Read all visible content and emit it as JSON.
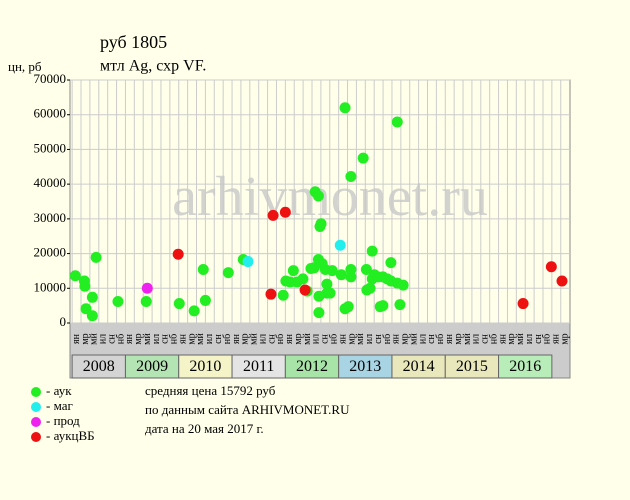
{
  "chart_data": {
    "type": "scatter",
    "title": "руб 1805",
    "subtitle": "мтл Ag, схр VF.",
    "y_label": "цн, рб",
    "watermark": "arhivmonet.ru",
    "xlim": [
      2007.96,
      2017.34
    ],
    "ylim": [
      0,
      70000
    ],
    "yticks": [
      0,
      10000,
      20000,
      30000,
      40000,
      50000,
      60000,
      70000
    ],
    "grid": true,
    "years": [
      2008,
      2009,
      2010,
      2011,
      2012,
      2013,
      2014,
      2015,
      2016
    ],
    "year_colors": [
      "#d4d4d4",
      "#b4e4b4",
      "#f4f4c8",
      "#e4e4e4",
      "#a8e4a8",
      "#a8d4e4",
      "#e8e8bc",
      "#e8e8bc",
      "#b8ecb8"
    ],
    "period_labels": [
      "ян",
      "мр",
      "мй",
      "ил",
      "сн",
      "нб"
    ],
    "series": [
      {
        "name": "- аук",
        "color": "#22ee22",
        "x": [
          2008.06,
          2008.23,
          2008.24,
          2008.26,
          2008.38,
          2008.38,
          2008.45,
          2008.86,
          2009.39,
          2010.01,
          2010.29,
          2010.46,
          2010.5,
          2010.93,
          2011.21,
          2011.96,
          2012.01,
          2012.09,
          2012.15,
          2012.22,
          2012.33,
          2012.41,
          2012.48,
          2012.54,
          2012.56,
          2012.62,
          2012.62,
          2012.63,
          2012.63,
          2012.65,
          2012.67,
          2012.69,
          2012.75,
          2012.78,
          2012.78,
          2012.84,
          2012.88,
          2013.05,
          2013.12,
          2013.12,
          2013.18,
          2013.23,
          2013.23,
          2013.23,
          2013.46,
          2013.52,
          2013.53,
          2013.59,
          2013.63,
          2013.63,
          2013.67,
          2013.74,
          2013.78,
          2013.83,
          2013.83,
          2013.91,
          2013.98,
          2013.98,
          2014.1,
          2014.1,
          2014.15,
          2014.21
        ],
        "values": [
          13600,
          12100,
          10600,
          4100,
          7400,
          2100,
          18900,
          6200,
          6200,
          5600,
          3500,
          15400,
          6500,
          14500,
          18300,
          8000,
          12100,
          11800,
          15100,
          11800,
          12700,
          9200,
          15700,
          15900,
          37800,
          36600,
          18300,
          7700,
          3000,
          27800,
          28600,
          17100,
          15400,
          11200,
          8600,
          8600,
          15100,
          13900,
          62000,
          4100,
          4700,
          42200,
          15400,
          13300,
          47500,
          15400,
          9500,
          10000,
          20700,
          12700,
          13900,
          13300,
          4700,
          13300,
          5000,
          12700,
          17400,
          12100,
          57900,
          11500,
          5300,
          10900
        ]
      },
      {
        "name": "- маг",
        "color": "#22eeee",
        "x": [
          2011.3,
          2013.03
        ],
        "values": [
          17700,
          22400
        ]
      },
      {
        "name": "- прод",
        "color": "#ee22ee",
        "x": [
          2009.41
        ],
        "values": [
          10000
        ]
      },
      {
        "name": "- аукцВБ",
        "color": "#ee1111",
        "x": [
          2009.99,
          2011.73,
          2011.77,
          2012.0,
          2012.37,
          2016.46,
          2016.99,
          2017.19
        ],
        "values": [
          19800,
          8300,
          31000,
          31900,
          9500,
          5600,
          16200,
          12100
        ]
      }
    ],
    "notes": [
      "средняя цена 15792 руб",
      "по данным сайта ARHIVMONET.RU",
      "дата на 20 мая 2017 г."
    ]
  }
}
